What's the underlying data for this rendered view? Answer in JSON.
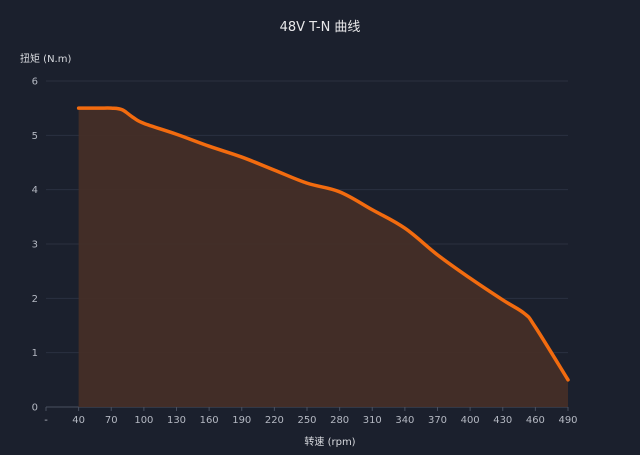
{
  "chart_data": {
    "type": "area",
    "title": "48V T-N 曲线",
    "xlabel": "转速 (rpm)",
    "ylabel": "扭矩 (N.m)",
    "x_tick_labels": [
      "-",
      "40",
      "70",
      "100",
      "130",
      "160",
      "190",
      "220",
      "250",
      "280",
      "310",
      "340",
      "370",
      "400",
      "430",
      "460",
      "490"
    ],
    "xlim": [
      10,
      490
    ],
    "ylim": [
      0,
      6
    ],
    "y_ticks": [
      0,
      1,
      2,
      3,
      4,
      5,
      6
    ],
    "grid": true,
    "colors": {
      "line": "#f26b0f",
      "fill": "#452e27",
      "background": "#1b202d",
      "grid": "#2b3140"
    },
    "x": [
      40,
      50,
      60,
      70,
      80,
      90,
      100,
      130,
      160,
      190,
      220,
      250,
      280,
      310,
      340,
      370,
      400,
      430,
      450,
      460,
      490
    ],
    "y": [
      5.5,
      5.5,
      5.5,
      5.5,
      5.47,
      5.33,
      5.22,
      5.02,
      4.8,
      4.6,
      4.36,
      4.12,
      3.96,
      3.63,
      3.29,
      2.8,
      2.37,
      1.97,
      1.72,
      1.47,
      0.5
    ]
  }
}
